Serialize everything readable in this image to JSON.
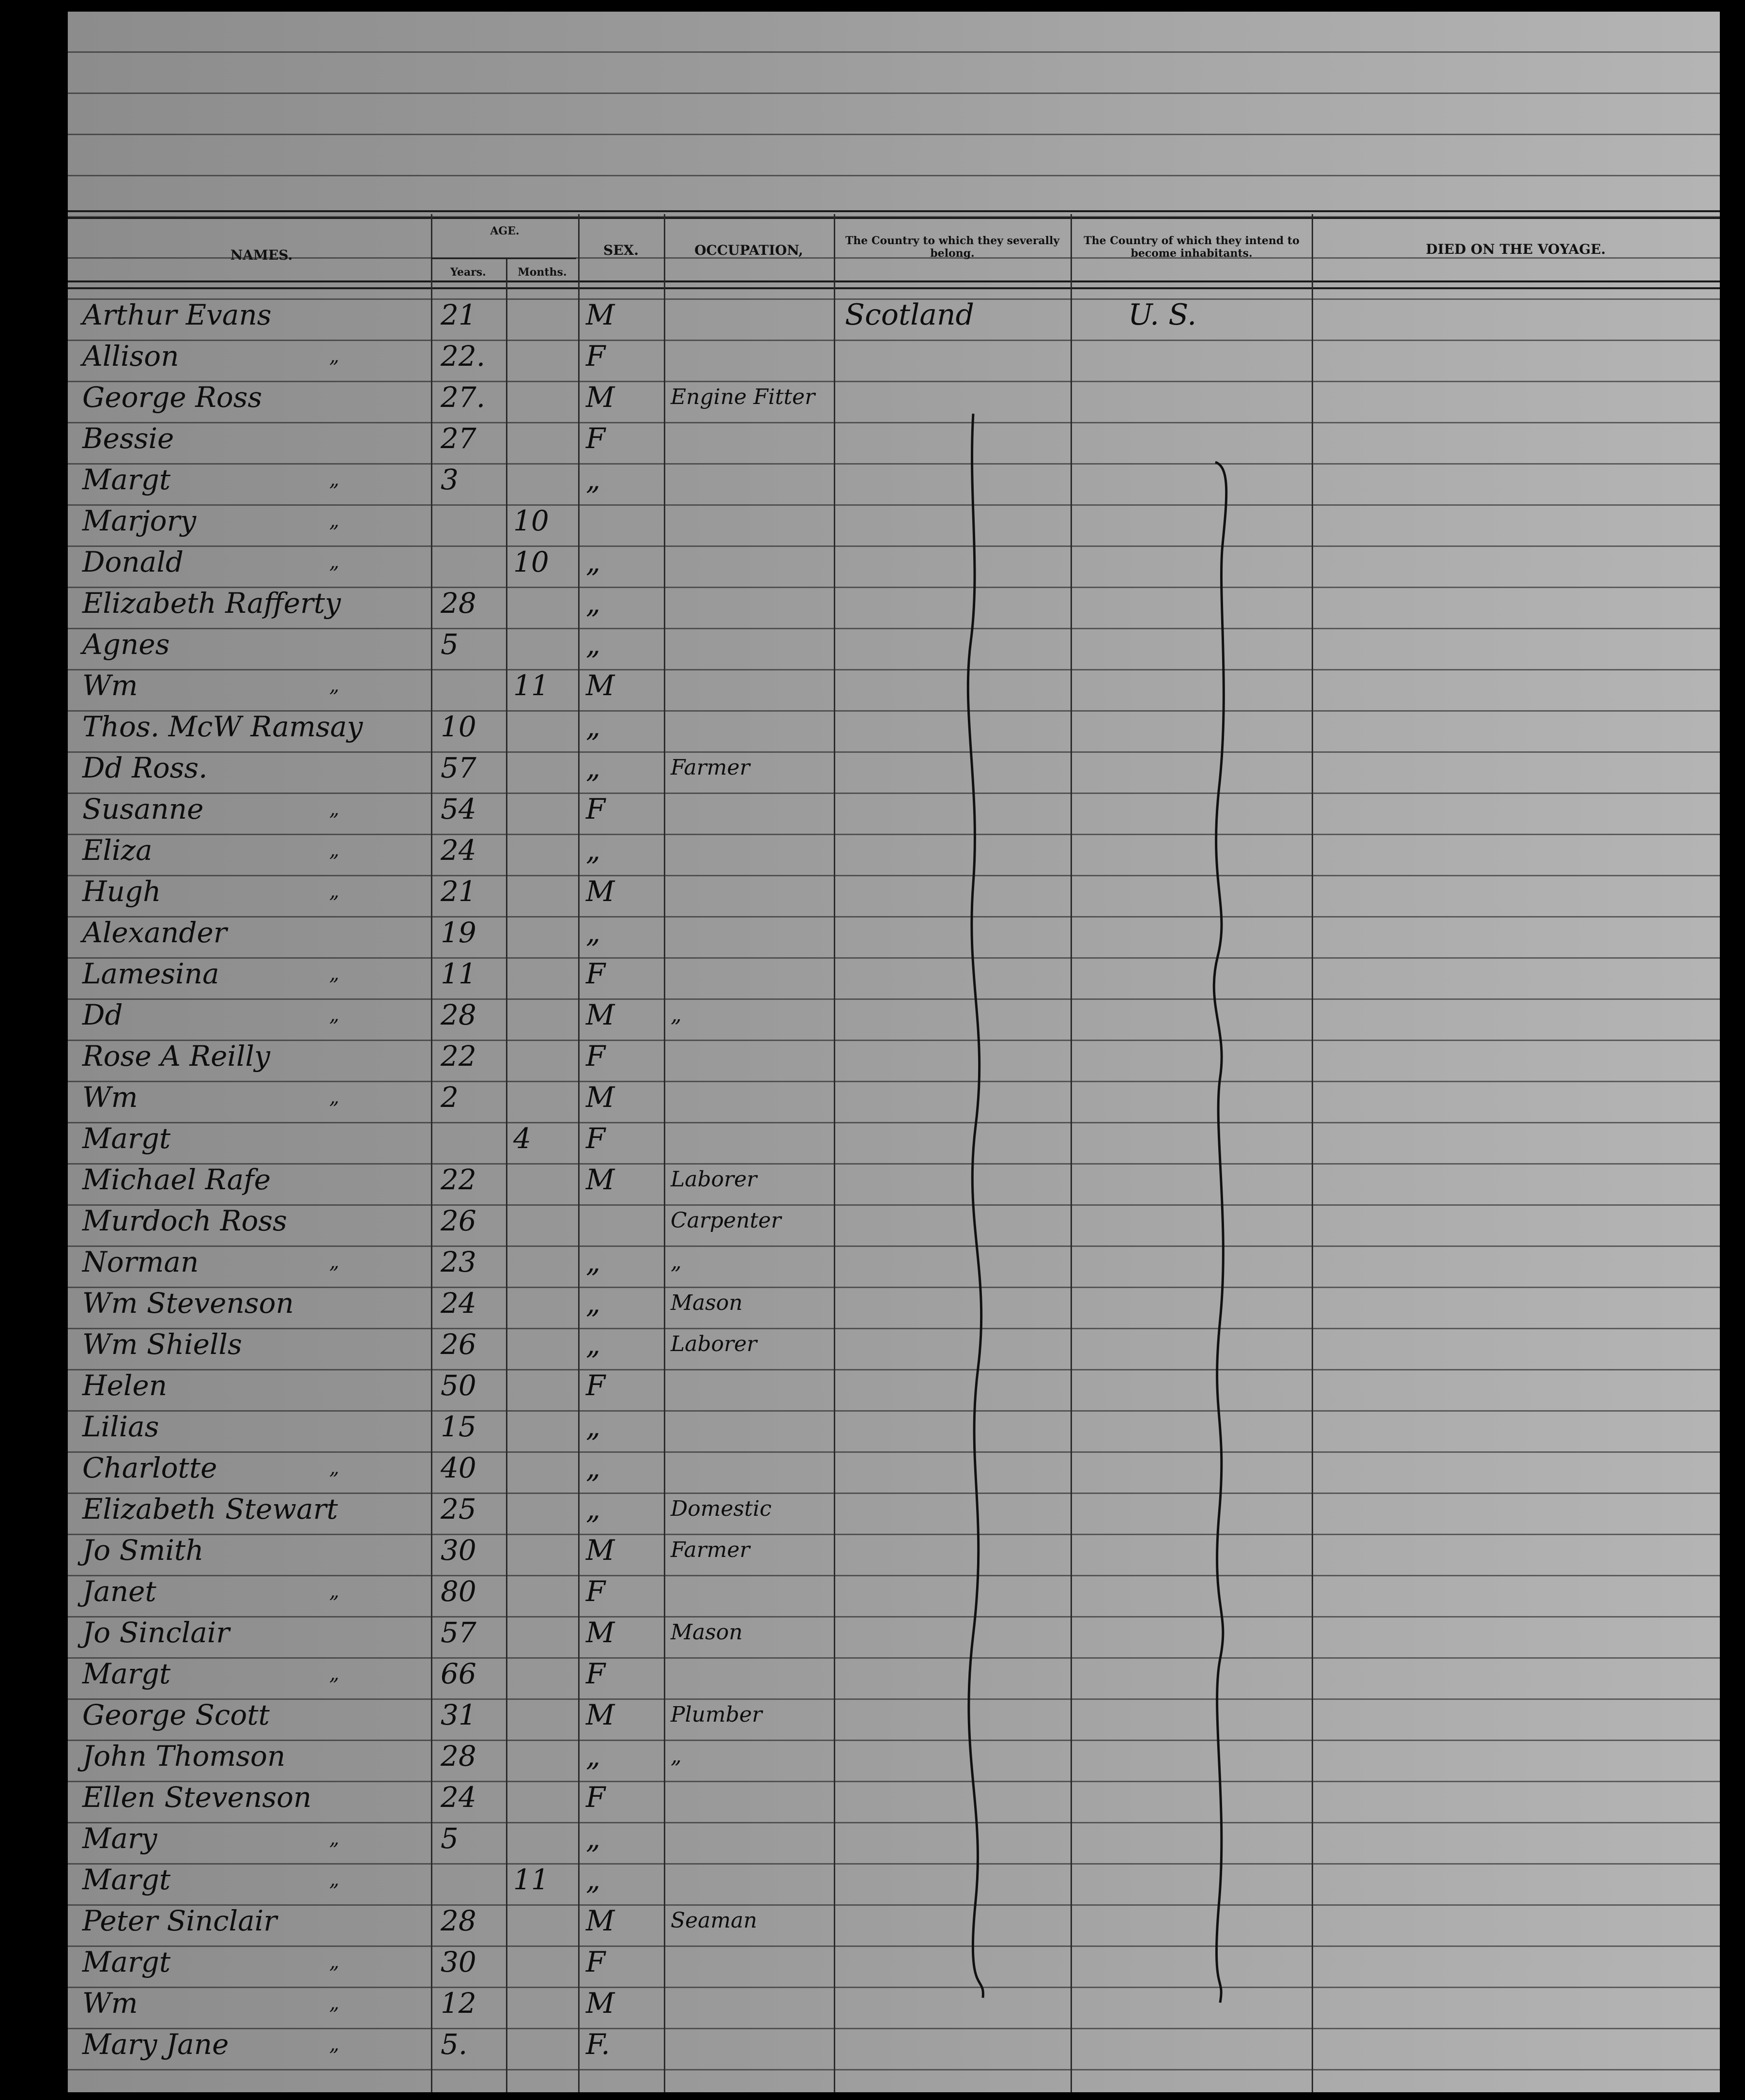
{
  "header": {
    "names": "NAMES.",
    "age": "AGE.",
    "years": "Years.",
    "months": "Months.",
    "sex": "SEX.",
    "occupation": "OCCUPATION,",
    "country_belong": "The Country to which they severally belong.",
    "country_intend": "The Country of which they intend to become inhabitants.",
    "died": "DIED ON THE VOYAGE."
  },
  "rows": [
    {
      "name": "Arthur Evans",
      "ditto": "",
      "years": "21",
      "months": "",
      "sex": "M",
      "occupation": "",
      "belong": "Scotland",
      "intend": "U. S."
    },
    {
      "name": "Allison",
      "ditto": "„",
      "years": "22.",
      "months": "",
      "sex": "F",
      "occupation": ""
    },
    {
      "name": "George Ross",
      "ditto": "",
      "years": "27.",
      "months": "",
      "sex": "M",
      "occupation": "Engine Fitter"
    },
    {
      "name": "Bessie",
      "ditto": "",
      "years": "27",
      "months": "",
      "sex": "F",
      "occupation": ""
    },
    {
      "name": "Margt",
      "ditto": "„",
      "years": "3",
      "months": "",
      "sex": "„",
      "occupation": ""
    },
    {
      "name": "Marjory",
      "ditto": "„",
      "years": "",
      "months": "10",
      "sex": "",
      "occupation": ""
    },
    {
      "name": "Donald",
      "ditto": "„",
      "years": "",
      "months": "10",
      "sex": "„",
      "occupation": ""
    },
    {
      "name": "Elizabeth Rafferty",
      "ditto": "",
      "years": "28",
      "months": "",
      "sex": "„",
      "occupation": ""
    },
    {
      "name": "Agnes",
      "ditto": "",
      "years": "5",
      "months": "",
      "sex": "„",
      "occupation": ""
    },
    {
      "name": "Wm",
      "ditto": "„",
      "years": "",
      "months": "11",
      "sex": "M",
      "occupation": ""
    },
    {
      "name": "Thos. McW Ramsay",
      "ditto": "",
      "years": "10",
      "months": "",
      "sex": "„",
      "occupation": ""
    },
    {
      "name": "Dd Ross.",
      "ditto": "",
      "years": "57",
      "months": "",
      "sex": "„",
      "occupation": "Farmer"
    },
    {
      "name": "Susanne",
      "ditto": "„",
      "years": "54",
      "months": "",
      "sex": "F",
      "occupation": ""
    },
    {
      "name": "Eliza",
      "ditto": "„",
      "years": "24",
      "months": "",
      "sex": "„",
      "occupation": ""
    },
    {
      "name": "Hugh",
      "ditto": "„",
      "years": "21",
      "months": "",
      "sex": "M",
      "occupation": ""
    },
    {
      "name": "Alexander",
      "ditto": "",
      "years": "19",
      "months": "",
      "sex": "„",
      "occupation": ""
    },
    {
      "name": "Lamesina",
      "ditto": "„",
      "years": "11",
      "months": "",
      "sex": "F",
      "occupation": ""
    },
    {
      "name": "Dd",
      "ditto": "„",
      "years": "28",
      "months": "",
      "sex": "M",
      "occupation": "„"
    },
    {
      "name": "Rose A Reilly",
      "ditto": "",
      "years": "22",
      "months": "",
      "sex": "F",
      "occupation": ""
    },
    {
      "name": "Wm",
      "ditto": "„",
      "years": "2",
      "months": "",
      "sex": "M",
      "occupation": ""
    },
    {
      "name": "Margt",
      "ditto": "",
      "years": "",
      "months": "4",
      "sex": "F",
      "occupation": ""
    },
    {
      "name": "Michael Rafe",
      "ditto": "",
      "years": "22",
      "months": "",
      "sex": "M",
      "occupation": "Laborer"
    },
    {
      "name": "Murdoch Ross",
      "ditto": "",
      "years": "26",
      "months": "",
      "sex": "",
      "occupation": "Carpenter"
    },
    {
      "name": "Norman",
      "ditto": "„",
      "years": "23",
      "months": "",
      "sex": "„",
      "occupation": "„"
    },
    {
      "name": "Wm Stevenson",
      "ditto": "",
      "years": "24",
      "months": "",
      "sex": "„",
      "occupation": "Mason"
    },
    {
      "name": "Wm Shiells",
      "ditto": "",
      "years": "26",
      "months": "",
      "sex": "„",
      "occupation": "Laborer"
    },
    {
      "name": "Helen",
      "ditto": "",
      "years": "50",
      "months": "",
      "sex": "F",
      "occupation": ""
    },
    {
      "name": "Lilias",
      "ditto": "",
      "years": "15",
      "months": "",
      "sex": "„",
      "occupation": ""
    },
    {
      "name": "Charlotte",
      "ditto": "„",
      "years": "40",
      "months": "",
      "sex": "„",
      "occupation": ""
    },
    {
      "name": "Elizabeth Stewart",
      "ditto": "",
      "years": "25",
      "months": "",
      "sex": "„",
      "occupation": "Domestic"
    },
    {
      "name": "Jo Smith",
      "ditto": "",
      "years": "30",
      "months": "",
      "sex": "M",
      "occupation": "Farmer"
    },
    {
      "name": "Janet",
      "ditto": "„",
      "years": "80",
      "months": "",
      "sex": "F",
      "occupation": ""
    },
    {
      "name": "Jo Sinclair",
      "ditto": "",
      "years": "57",
      "months": "",
      "sex": "M",
      "occupation": "Mason"
    },
    {
      "name": "Margt",
      "ditto": "„",
      "years": "66",
      "months": "",
      "sex": "F",
      "occupation": ""
    },
    {
      "name": "George Scott",
      "ditto": "",
      "years": "31",
      "months": "",
      "sex": "M",
      "occupation": "Plumber"
    },
    {
      "name": "John Thomson",
      "ditto": "",
      "years": "28",
      "months": "",
      "sex": "„",
      "occupation": "„"
    },
    {
      "name": "Ellen Stevenson",
      "ditto": "",
      "years": "24",
      "months": "",
      "sex": "F",
      "occupation": ""
    },
    {
      "name": "Mary",
      "ditto": "„",
      "years": "5",
      "months": "",
      "sex": "„",
      "occupation": ""
    },
    {
      "name": "Margt",
      "ditto": "„",
      "years": "",
      "months": "11",
      "sex": "„",
      "occupation": ""
    },
    {
      "name": "Peter Sinclair",
      "ditto": "",
      "years": "28",
      "months": "",
      "sex": "M",
      "occupation": "Seaman"
    },
    {
      "name": "Margt",
      "ditto": "„",
      "years": "30",
      "months": "",
      "sex": "F",
      "occupation": ""
    },
    {
      "name": "Wm",
      "ditto": "„",
      "years": "12",
      "months": "",
      "sex": "M",
      "occupation": ""
    },
    {
      "name": "Mary Jane",
      "ditto": "„",
      "years": "5.",
      "months": "",
      "sex": "F.",
      "occupation": ""
    }
  ]
}
